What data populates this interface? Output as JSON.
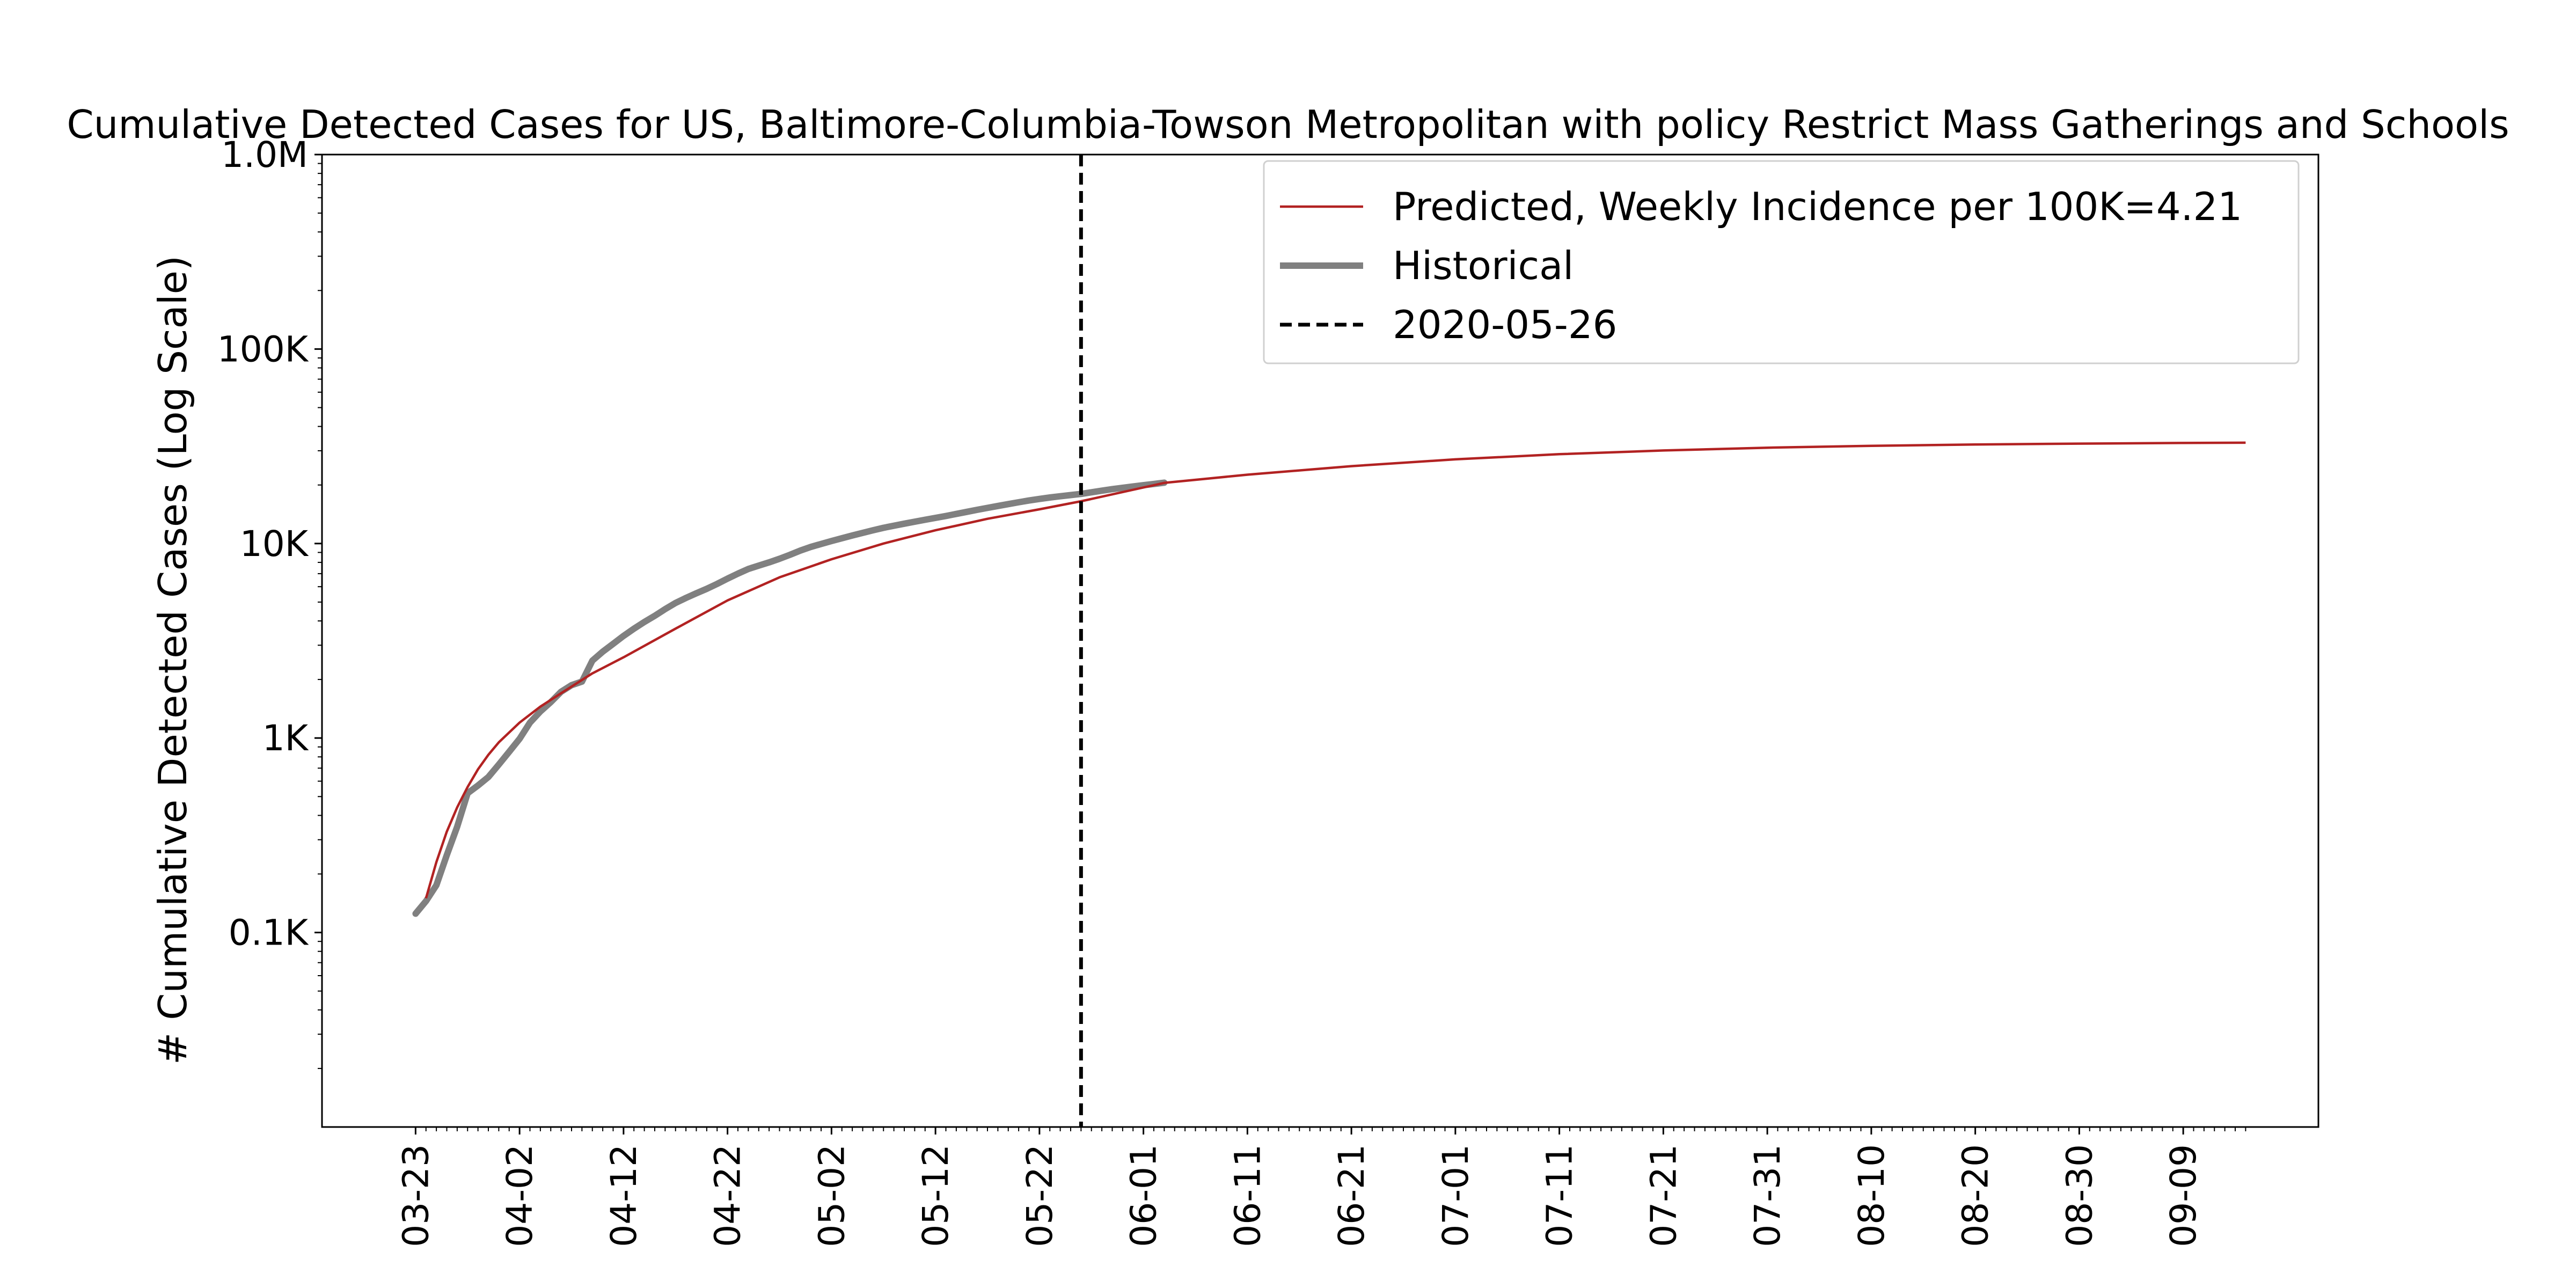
{
  "chart_data": {
    "type": "line",
    "title": "Cumulative Detected Cases for US, Baltimore-Columbia-Towson Metropolitan with policy Restrict Mass Gatherings and Schools",
    "xlabel": "",
    "ylabel": "# Cumulative Detected Cases (Log Scale)",
    "y_scale": "log",
    "ylim": [
      10,
      1000000
    ],
    "xlim": [
      "2020-03-14",
      "2020-09-22"
    ],
    "grid": false,
    "legend_position": "top-right",
    "y_ticks": [
      {
        "value": 100,
        "label": "0.1K"
      },
      {
        "value": 1000,
        "label": "1K"
      },
      {
        "value": 10000,
        "label": "10K"
      },
      {
        "value": 100000,
        "label": "100K"
      },
      {
        "value": 1000000,
        "label": "1.0M"
      }
    ],
    "x_ticks": [
      "2020-03-23",
      "2020-04-02",
      "2020-04-12",
      "2020-04-22",
      "2020-05-02",
      "2020-05-12",
      "2020-05-22",
      "2020-06-01",
      "2020-06-11",
      "2020-06-21",
      "2020-07-01",
      "2020-07-11",
      "2020-07-21",
      "2020-07-31",
      "2020-08-10",
      "2020-08-20",
      "2020-08-30",
      "2020-09-09"
    ],
    "x_tick_labels": [
      "03-23",
      "04-02",
      "04-12",
      "04-22",
      "05-02",
      "05-12",
      "05-22",
      "06-01",
      "06-11",
      "06-21",
      "07-01",
      "07-11",
      "07-21",
      "07-31",
      "08-10",
      "08-20",
      "08-30",
      "09-09"
    ],
    "vline": {
      "x": "2020-05-26",
      "label": "2020-05-26",
      "color": "#000000",
      "style": "dashed"
    },
    "series": [
      {
        "name": "Historical",
        "color": "#808080",
        "points": [
          [
            "2020-03-23",
            125
          ],
          [
            "2020-03-24",
            145
          ],
          [
            "2020-03-25",
            175
          ],
          [
            "2020-03-26",
            250
          ],
          [
            "2020-03-27",
            350
          ],
          [
            "2020-03-28",
            520
          ],
          [
            "2020-03-29",
            570
          ],
          [
            "2020-03-30",
            630
          ],
          [
            "2020-03-31",
            730
          ],
          [
            "2020-04-01",
            850
          ],
          [
            "2020-04-02",
            990
          ],
          [
            "2020-04-03",
            1200
          ],
          [
            "2020-04-04",
            1370
          ],
          [
            "2020-04-05",
            1530
          ],
          [
            "2020-04-06",
            1730
          ],
          [
            "2020-04-07",
            1870
          ],
          [
            "2020-04-08",
            1950
          ],
          [
            "2020-04-09",
            2500
          ],
          [
            "2020-04-10",
            2780
          ],
          [
            "2020-04-11",
            3050
          ],
          [
            "2020-04-12",
            3350
          ],
          [
            "2020-04-13",
            3650
          ],
          [
            "2020-04-14",
            3950
          ],
          [
            "2020-04-15",
            4250
          ],
          [
            "2020-04-16",
            4600
          ],
          [
            "2020-04-17",
            4950
          ],
          [
            "2020-04-18",
            5250
          ],
          [
            "2020-04-19",
            5550
          ],
          [
            "2020-04-20",
            5850
          ],
          [
            "2020-04-21",
            6200
          ],
          [
            "2020-04-22",
            6600
          ],
          [
            "2020-04-23",
            7000
          ],
          [
            "2020-04-24",
            7400
          ],
          [
            "2020-04-25",
            7700
          ],
          [
            "2020-04-26",
            8000
          ],
          [
            "2020-04-27",
            8350
          ],
          [
            "2020-04-28",
            8750
          ],
          [
            "2020-04-29",
            9200
          ],
          [
            "2020-04-30",
            9600
          ],
          [
            "2020-05-01",
            9950
          ],
          [
            "2020-05-02",
            10300
          ],
          [
            "2020-05-03",
            10650
          ],
          [
            "2020-05-04",
            11000
          ],
          [
            "2020-05-05",
            11350
          ],
          [
            "2020-05-06",
            11700
          ],
          [
            "2020-05-07",
            12050
          ],
          [
            "2020-05-08",
            12350
          ],
          [
            "2020-05-09",
            12650
          ],
          [
            "2020-05-10",
            12950
          ],
          [
            "2020-05-11",
            13250
          ],
          [
            "2020-05-12",
            13550
          ],
          [
            "2020-05-13",
            13850
          ],
          [
            "2020-05-14",
            14200
          ],
          [
            "2020-05-15",
            14550
          ],
          [
            "2020-05-16",
            14900
          ],
          [
            "2020-05-17",
            15250
          ],
          [
            "2020-05-18",
            15600
          ],
          [
            "2020-05-19",
            15950
          ],
          [
            "2020-05-20",
            16300
          ],
          [
            "2020-05-21",
            16650
          ],
          [
            "2020-05-22",
            16950
          ],
          [
            "2020-05-23",
            17250
          ],
          [
            "2020-05-24",
            17500
          ],
          [
            "2020-05-25",
            17750
          ],
          [
            "2020-05-26",
            18000
          ],
          [
            "2020-05-27",
            18350
          ],
          [
            "2020-05-28",
            18700
          ],
          [
            "2020-05-29",
            19050
          ],
          [
            "2020-05-30",
            19350
          ],
          [
            "2020-05-31",
            19650
          ],
          [
            "2020-06-01",
            19950
          ],
          [
            "2020-06-02",
            20250
          ],
          [
            "2020-06-03",
            20550
          ]
        ]
      },
      {
        "name": "Predicted, Weekly Incidence per 100K=4.21",
        "color": "#b22222",
        "points": [
          [
            "2020-03-24",
            150
          ],
          [
            "2020-03-25",
            230
          ],
          [
            "2020-03-26",
            330
          ],
          [
            "2020-03-27",
            440
          ],
          [
            "2020-03-28",
            560
          ],
          [
            "2020-03-29",
            690
          ],
          [
            "2020-03-30",
            820
          ],
          [
            "2020-03-31",
            950
          ],
          [
            "2020-04-02",
            1200
          ],
          [
            "2020-04-04",
            1450
          ],
          [
            "2020-04-06",
            1700
          ],
          [
            "2020-04-09",
            2150
          ],
          [
            "2020-04-12",
            2600
          ],
          [
            "2020-04-17",
            3650
          ],
          [
            "2020-04-22",
            5100
          ],
          [
            "2020-04-27",
            6700
          ],
          [
            "2020-05-02",
            8300
          ],
          [
            "2020-05-07",
            10000
          ],
          [
            "2020-05-12",
            11700
          ],
          [
            "2020-05-17",
            13400
          ],
          [
            "2020-05-22",
            15000
          ],
          [
            "2020-05-26",
            16500
          ],
          [
            "2020-06-03",
            20500
          ],
          [
            "2020-06-11",
            22600
          ],
          [
            "2020-06-21",
            25000
          ],
          [
            "2020-07-01",
            27100
          ],
          [
            "2020-07-11",
            28800
          ],
          [
            "2020-07-21",
            30100
          ],
          [
            "2020-07-31",
            31100
          ],
          [
            "2020-08-10",
            31800
          ],
          [
            "2020-08-20",
            32300
          ],
          [
            "2020-08-30",
            32650
          ],
          [
            "2020-09-09",
            32900
          ],
          [
            "2020-09-15",
            33000
          ]
        ]
      }
    ],
    "legend": [
      {
        "label": "Predicted, Weekly Incidence per 100K=4.21",
        "color": "#b22222",
        "style": "solid-thin"
      },
      {
        "label": "Historical",
        "color": "#808080",
        "style": "solid-thick"
      },
      {
        "label": "2020-05-26",
        "color": "#000000",
        "style": "dashed"
      }
    ]
  }
}
